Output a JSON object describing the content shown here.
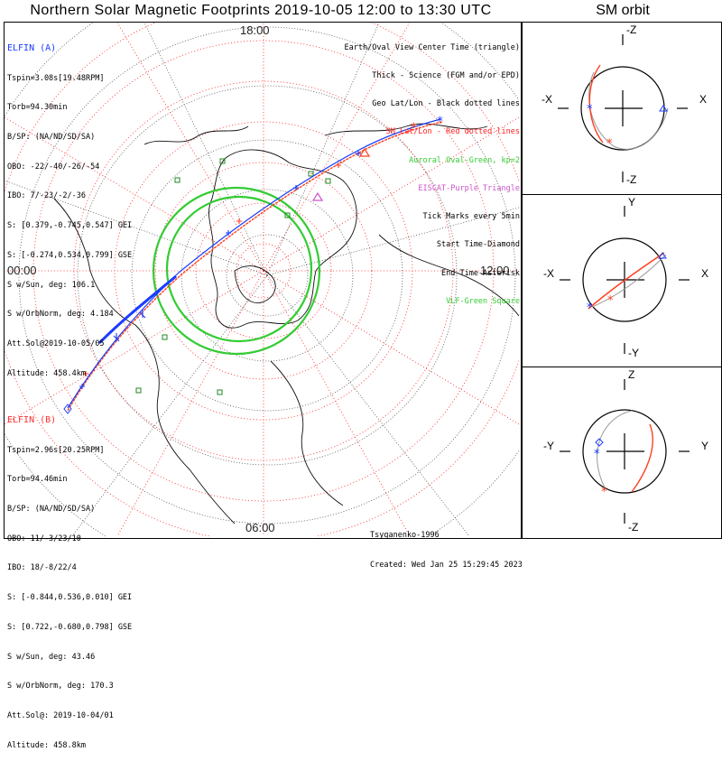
{
  "title": "Northern Solar Magnetic Footprints 2019-10-05 12:00 to 13:30 UTC",
  "orbit_title": "SM orbit",
  "time_labels": {
    "top": "18:00",
    "left": "00:00",
    "right": "12:00",
    "bottom": "06:00"
  },
  "elfin_a": {
    "header": "ELFIN (A)",
    "lines": [
      "Tspin=3.08s[19.48RPM]",
      "Torb=94.30min",
      "B/SP: (NA/ND/SD/SA)",
      "OBO: -22/-40/-26/-54",
      "IBO: 7/-23/-2/-36",
      "S: [0.379,-0.745,0.547] GEI",
      "S: [-0.274,0.534,0.799] GSE",
      "S w/Sun, deg: 106.1",
      "S w/OrbNorm, deg: 4.184",
      "Att.Sol@2019-10-05/05",
      "Altitude: 458.4km"
    ]
  },
  "elfin_b": {
    "header": "ELFIN (B)",
    "lines": [
      "Tspin=2.96s[20.25RPM]",
      "Torb=94.46min",
      "B/SP: (NA/ND/SD/SA)",
      "OBO: 11/-3/23/10",
      "IBO: 18/-8/22/4",
      "S: [-0.844,0.536,0.010] GEI",
      "S: [0.722,-0.680,0.798] GSE",
      "S w/Sun, deg: 43.46",
      "S w/OrbNorm, deg: 170.3",
      "Att.Sol@: 2019-10-04/01",
      "Altitude: 458.8km"
    ]
  },
  "legend": [
    {
      "text": "Earth/Oval View Center Time (triangle)",
      "color": "#000000"
    },
    {
      "text": "Thick - Science (FGM and/or EPD)",
      "color": "#000000"
    },
    {
      "text": "Geo Lat/Lon - Black dotted lines",
      "color": "#000000"
    },
    {
      "text": "SM Lat/Lon - Red dotted lines",
      "color": "#ff2020"
    },
    {
      "text": "Auroral Oval-Green, kp=2",
      "color": "#33cc33"
    },
    {
      "text": "EISCAT-Purple Triangle",
      "color": "#cc55cc"
    },
    {
      "text": "Tick Marks every 5min",
      "color": "#000000"
    },
    {
      "text": "Start Time-Diamond",
      "color": "#000000"
    },
    {
      "text": "End Time-Asterisk",
      "color": "#000000"
    },
    {
      "text": "VLF-Green Square",
      "color": "#33cc33"
    }
  ],
  "footer": {
    "author": "Tsyganenko-1996",
    "created": "Created: Wed Jan 25 15:29:45 2023"
  },
  "orbit_panels": [
    {
      "top": "-Z",
      "bottom": "-Z",
      "left": "-X",
      "right": "X",
      "top_text": "-Z"
    },
    {
      "top": "Y",
      "bottom": "-Y",
      "left": "-X",
      "right": "X"
    },
    {
      "top": "Z",
      "bottom": "-Z",
      "left": "-Y",
      "right": "Y"
    }
  ],
  "colors": {
    "elfin_a": "#1a3cff",
    "elfin_b": "#ff4020",
    "oval": "#33cc33",
    "sm_grid": "#ff2020",
    "eiscat": "#cc55cc"
  }
}
